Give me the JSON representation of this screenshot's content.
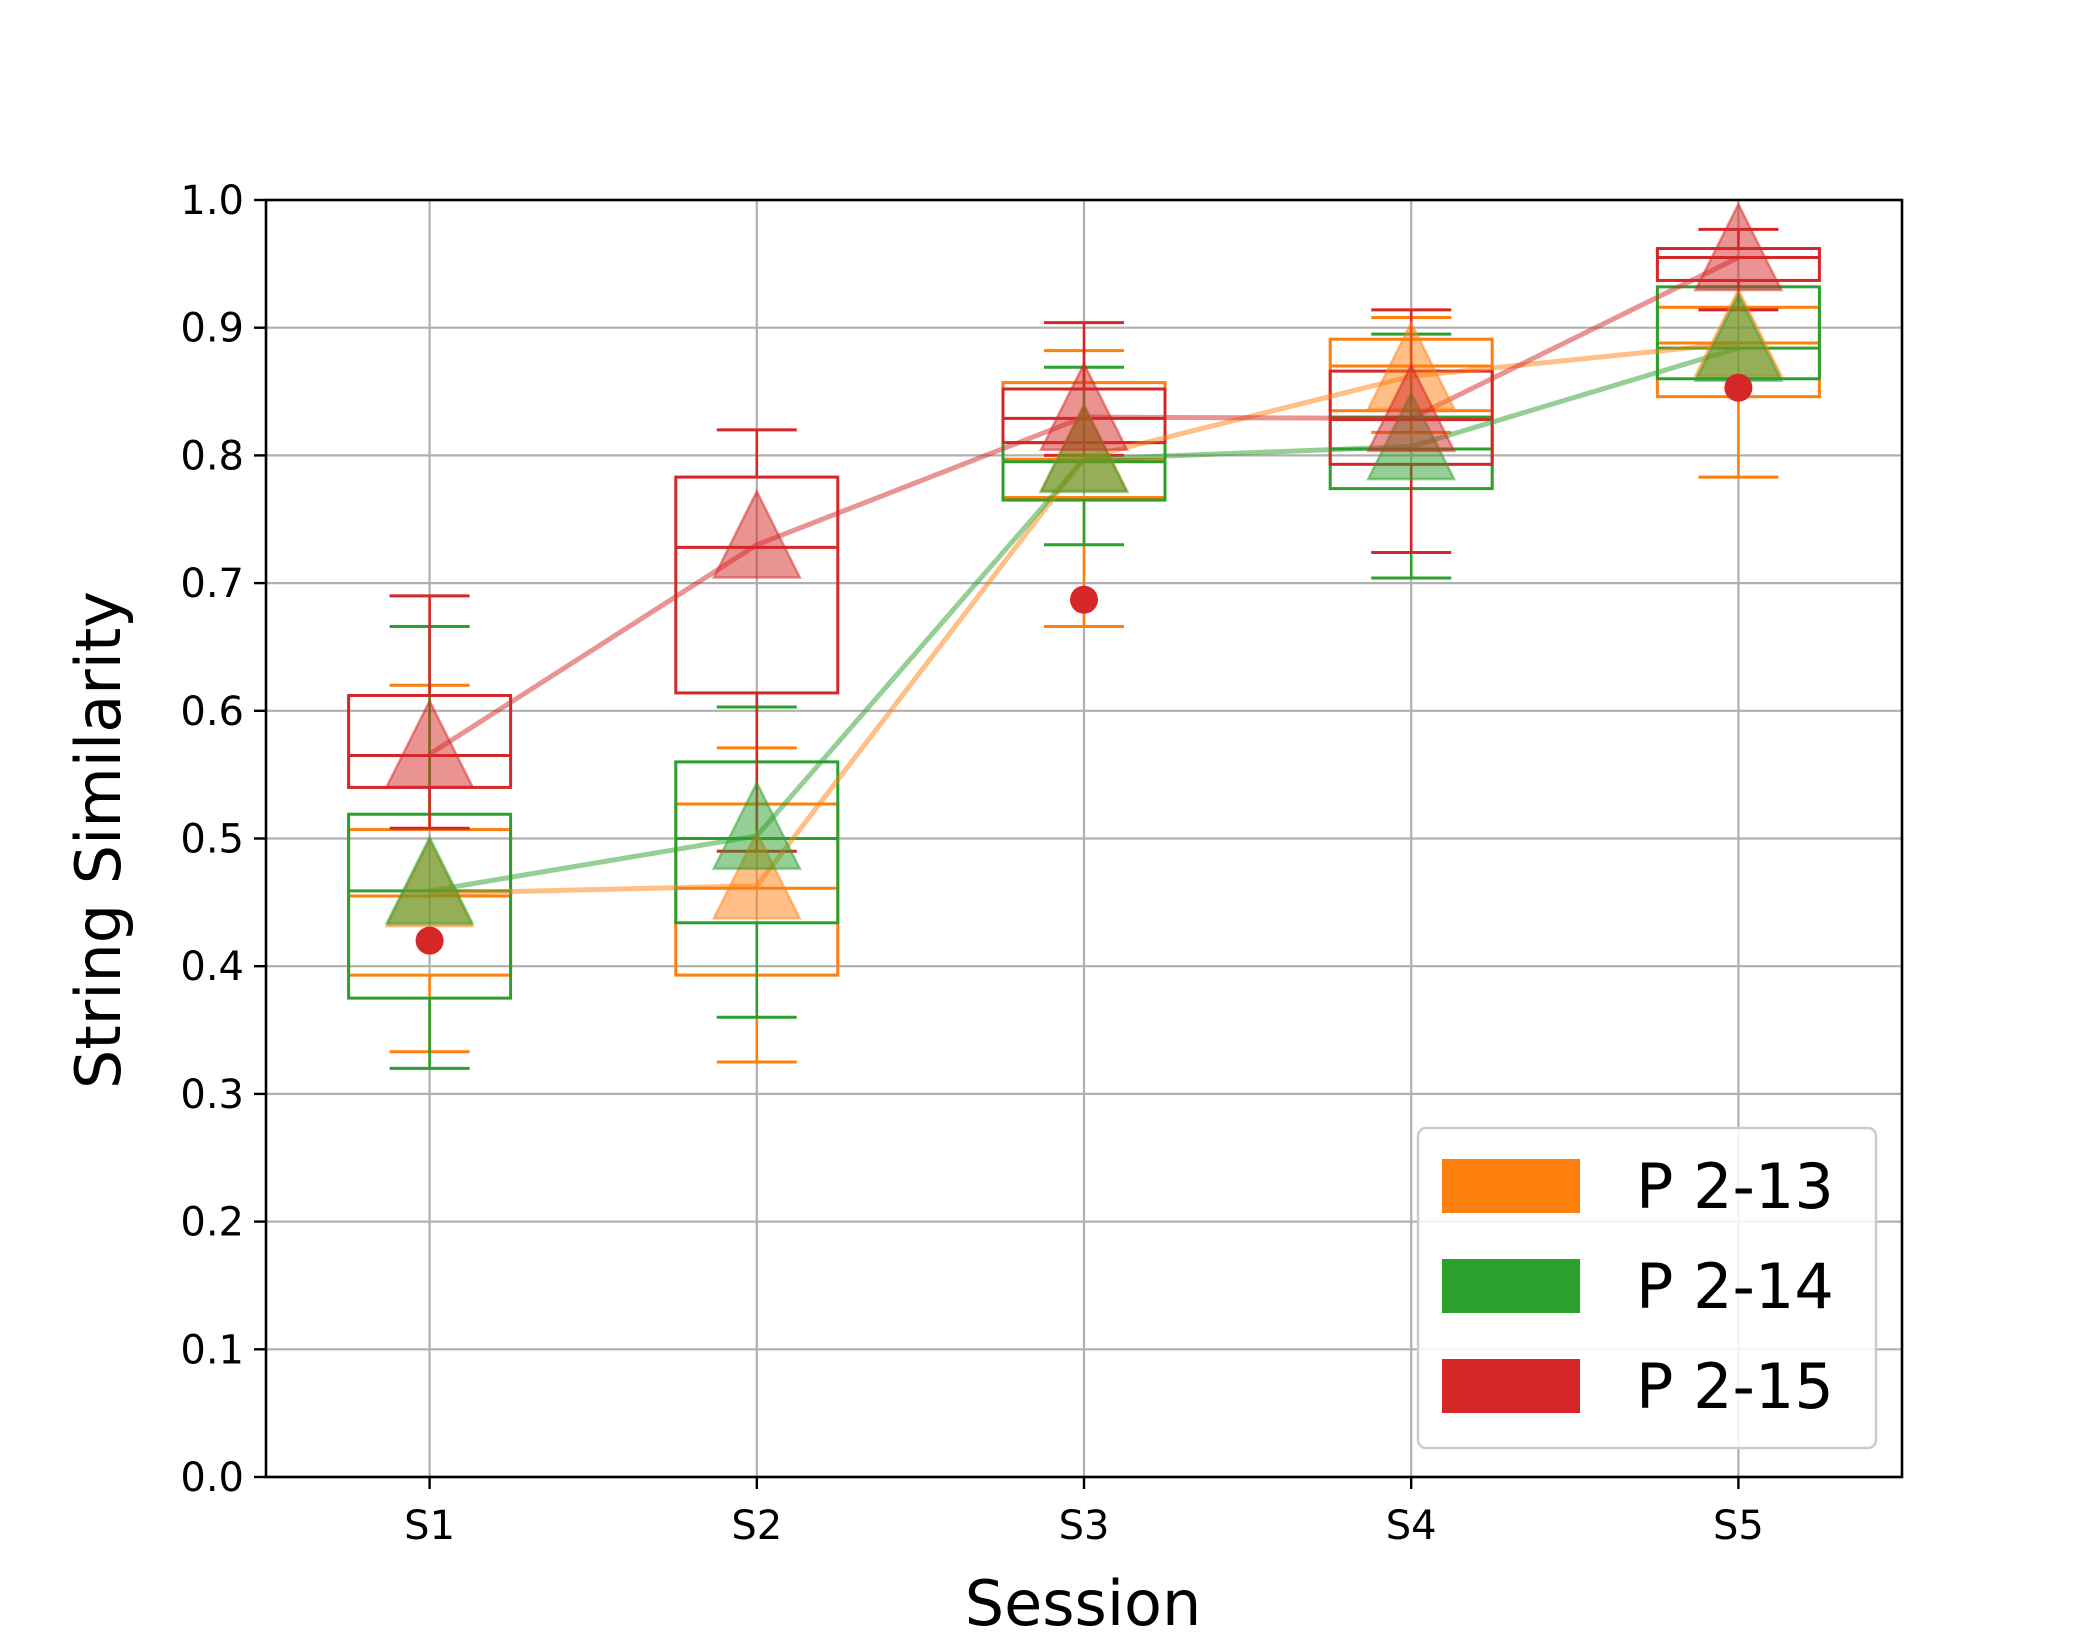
{
  "chart_data": {
    "type": "box",
    "title": "",
    "xlabel": "Session",
    "ylabel": "String Similarity",
    "ylim": [
      0.0,
      1.0
    ],
    "yticks": [
      "0.0",
      "0.1",
      "0.2",
      "0.3",
      "0.4",
      "0.5",
      "0.6",
      "0.7",
      "0.8",
      "0.9",
      "1.0"
    ],
    "categories": [
      "S1",
      "S2",
      "S3",
      "S4",
      "S5"
    ],
    "grid": true,
    "legend_position": "lower-right",
    "series": [
      {
        "name": "P 2-13",
        "color": "#ff7f0e",
        "boxes": [
          {
            "whislo": 0.333,
            "q1": 0.393,
            "med": 0.455,
            "q3": 0.507,
            "whishi": 0.62
          },
          {
            "whislo": 0.325,
            "q1": 0.393,
            "med": 0.461,
            "q3": 0.527,
            "whishi": 0.571
          },
          {
            "whislo": 0.666,
            "q1": 0.767,
            "med": 0.797,
            "q3": 0.857,
            "whishi": 0.882
          },
          {
            "whislo": 0.818,
            "q1": 0.835,
            "med": 0.87,
            "q3": 0.891,
            "whishi": 0.908
          },
          {
            "whislo": 0.783,
            "q1": 0.846,
            "med": 0.888,
            "q3": 0.916,
            "whishi": 0.937
          }
        ],
        "means": [
          0.457,
          0.463,
          0.798,
          0.862,
          0.888
        ],
        "outliers": [
          [],
          [],
          [],
          [],
          []
        ]
      },
      {
        "name": "P 2-14",
        "color": "#2ca02c",
        "boxes": [
          {
            "whislo": 0.32,
            "q1": 0.375,
            "med": 0.459,
            "q3": 0.519,
            "whishi": 0.666
          },
          {
            "whislo": 0.36,
            "q1": 0.434,
            "med": 0.5,
            "q3": 0.56,
            "whishi": 0.603
          },
          {
            "whislo": 0.73,
            "q1": 0.765,
            "med": 0.795,
            "q3": 0.81,
            "whishi": 0.869
          },
          {
            "whislo": 0.704,
            "q1": 0.774,
            "med": 0.805,
            "q3": 0.83,
            "whishi": 0.895
          },
          {
            "whislo": 0.86,
            "q1": 0.86,
            "med": 0.884,
            "q3": 0.932,
            "whishi": 0.932
          }
        ],
        "means": [
          0.459,
          0.502,
          0.797,
          0.807,
          0.884
        ],
        "outliers": [
          [],
          [],
          [],
          [],
          []
        ]
      },
      {
        "name": "P 2-15",
        "color": "#d62728",
        "boxes": [
          {
            "whislo": 0.508,
            "q1": 0.54,
            "med": 0.565,
            "q3": 0.612,
            "whishi": 0.69
          },
          {
            "whislo": 0.49,
            "q1": 0.614,
            "med": 0.728,
            "q3": 0.783,
            "whishi": 0.82
          },
          {
            "whislo": 0.8,
            "q1": 0.81,
            "med": 0.829,
            "q3": 0.852,
            "whishi": 0.904
          },
          {
            "whislo": 0.724,
            "q1": 0.793,
            "med": 0.828,
            "q3": 0.866,
            "whishi": 0.914
          },
          {
            "whislo": 0.914,
            "q1": 0.937,
            "med": 0.955,
            "q3": 0.962,
            "whishi": 0.977
          }
        ],
        "means": [
          0.566,
          0.73,
          0.83,
          0.829,
          0.955
        ],
        "outliers": [
          [
            0.42
          ],
          [],
          [
            0.687
          ],
          [],
          [
            0.853
          ]
        ]
      }
    ]
  }
}
